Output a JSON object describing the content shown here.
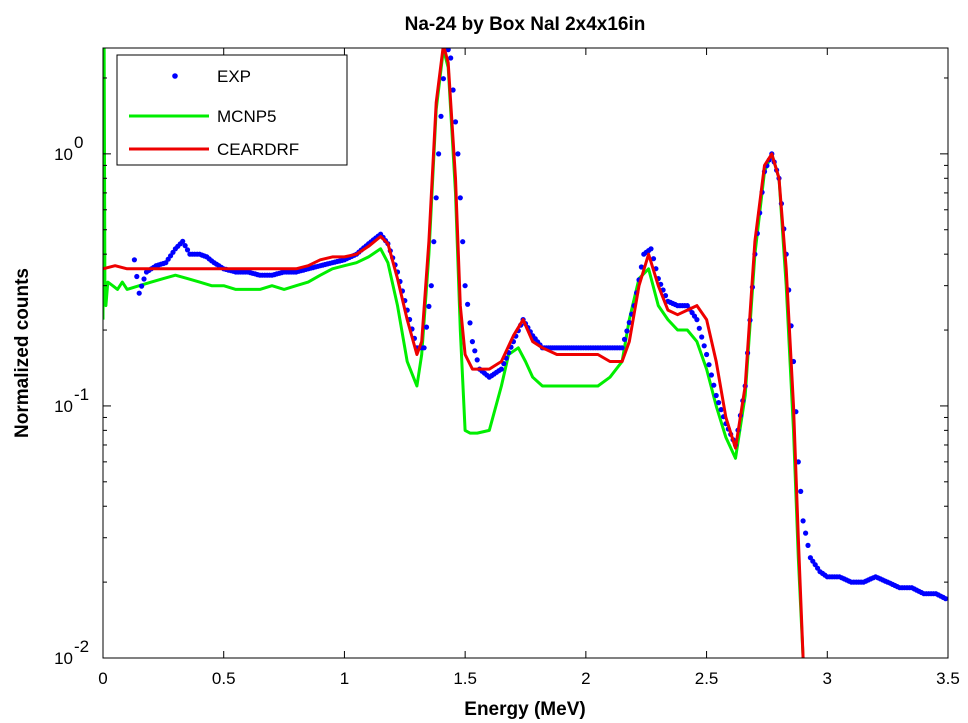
{
  "chart_data": {
    "type": "line",
    "title": "Na-24 by Box NaI 2x4x16in",
    "xlabel": "Energy (MeV)",
    "ylabel": "Normalized counts",
    "xlim": [
      0,
      3.5
    ],
    "ylim": [
      0.01,
      4.0
    ],
    "yscale": "log",
    "grid": false,
    "legend_position": "top-left",
    "x_ticks": [
      "0",
      "0.5",
      "1",
      "1.5",
      "2",
      "2.5",
      "3",
      "3.5"
    ],
    "y_ticks": [
      {
        "base": "10",
        "exp": "-2"
      },
      {
        "base": "10",
        "exp": "-1"
      },
      {
        "base": "10",
        "exp": "0"
      }
    ],
    "series": [
      {
        "name": "EXP",
        "style": "dots",
        "color": "#0000ff",
        "x": [
          0.13,
          0.15,
          0.18,
          0.22,
          0.26,
          0.3,
          0.33,
          0.36,
          0.4,
          0.43,
          0.46,
          0.5,
          0.55,
          0.6,
          0.65,
          0.7,
          0.75,
          0.8,
          0.85,
          0.9,
          0.95,
          1.0,
          1.05,
          1.1,
          1.15,
          1.18,
          1.22,
          1.26,
          1.3,
          1.33,
          1.36,
          1.39,
          1.42,
          1.44,
          1.47,
          1.5,
          1.53,
          1.56,
          1.6,
          1.65,
          1.7,
          1.74,
          1.78,
          1.82,
          1.88,
          1.95,
          2.0,
          2.05,
          2.1,
          2.15,
          2.2,
          2.24,
          2.27,
          2.3,
          2.34,
          2.38,
          2.42,
          2.46,
          2.5,
          2.54,
          2.58,
          2.62,
          2.66,
          2.7,
          2.74,
          2.77,
          2.8,
          2.83,
          2.86,
          2.88,
          2.9,
          2.93,
          2.97,
          3.0,
          3.05,
          3.1,
          3.15,
          3.2,
          3.25,
          3.3,
          3.35,
          3.4,
          3.45,
          3.5
        ],
        "y": [
          0.38,
          0.28,
          0.34,
          0.36,
          0.37,
          0.42,
          0.45,
          0.4,
          0.4,
          0.39,
          0.37,
          0.35,
          0.34,
          0.34,
          0.33,
          0.33,
          0.34,
          0.34,
          0.35,
          0.36,
          0.37,
          0.38,
          0.4,
          0.44,
          0.48,
          0.44,
          0.34,
          0.24,
          0.17,
          0.17,
          0.3,
          1.0,
          2.8,
          2.4,
          1.0,
          0.3,
          0.18,
          0.14,
          0.13,
          0.14,
          0.18,
          0.22,
          0.19,
          0.17,
          0.17,
          0.17,
          0.17,
          0.17,
          0.17,
          0.17,
          0.25,
          0.4,
          0.42,
          0.32,
          0.26,
          0.25,
          0.25,
          0.22,
          0.16,
          0.11,
          0.085,
          0.07,
          0.12,
          0.4,
          0.85,
          1.0,
          0.8,
          0.4,
          0.15,
          0.06,
          0.035,
          0.025,
          0.022,
          0.021,
          0.021,
          0.02,
          0.02,
          0.021,
          0.02,
          0.019,
          0.019,
          0.018,
          0.018,
          0.017
        ]
      },
      {
        "name": "MCNP5",
        "style": "line",
        "color": "#00ee00",
        "x": [
          0.0,
          0.004,
          0.008,
          0.012,
          0.02,
          0.04,
          0.06,
          0.08,
          0.1,
          0.15,
          0.2,
          0.25,
          0.3,
          0.35,
          0.4,
          0.45,
          0.5,
          0.55,
          0.6,
          0.65,
          0.7,
          0.75,
          0.8,
          0.85,
          0.9,
          0.95,
          1.0,
          1.05,
          1.1,
          1.15,
          1.18,
          1.22,
          1.26,
          1.3,
          1.32,
          1.35,
          1.38,
          1.41,
          1.43,
          1.46,
          1.48,
          1.5,
          1.52,
          1.55,
          1.6,
          1.65,
          1.68,
          1.72,
          1.75,
          1.78,
          1.82,
          1.88,
          1.95,
          2.05,
          2.1,
          2.15,
          2.18,
          2.22,
          2.26,
          2.3,
          2.34,
          2.38,
          2.42,
          2.46,
          2.5,
          2.54,
          2.58,
          2.62,
          2.66,
          2.7,
          2.74,
          2.77,
          2.8,
          2.83,
          2.86,
          2.88,
          2.9
        ],
        "y": [
          0.22,
          4.0,
          0.3,
          0.25,
          0.31,
          0.3,
          0.29,
          0.31,
          0.29,
          0.3,
          0.31,
          0.32,
          0.33,
          0.32,
          0.31,
          0.3,
          0.3,
          0.29,
          0.29,
          0.29,
          0.3,
          0.29,
          0.3,
          0.31,
          0.33,
          0.35,
          0.36,
          0.37,
          0.39,
          0.42,
          0.37,
          0.25,
          0.15,
          0.12,
          0.16,
          0.4,
          1.5,
          2.6,
          2.2,
          0.7,
          0.2,
          0.08,
          0.078,
          0.078,
          0.08,
          0.12,
          0.16,
          0.17,
          0.15,
          0.13,
          0.12,
          0.12,
          0.12,
          0.12,
          0.13,
          0.15,
          0.22,
          0.32,
          0.35,
          0.25,
          0.22,
          0.2,
          0.2,
          0.18,
          0.14,
          0.1,
          0.075,
          0.062,
          0.11,
          0.4,
          0.85,
          1.0,
          0.8,
          0.3,
          0.08,
          0.025,
          0.01
        ]
      },
      {
        "name": "CEARDRF",
        "style": "line",
        "color": "#ee0000",
        "x": [
          0.0,
          0.05,
          0.1,
          0.15,
          0.2,
          0.25,
          0.3,
          0.35,
          0.4,
          0.45,
          0.5,
          0.55,
          0.6,
          0.65,
          0.7,
          0.75,
          0.8,
          0.85,
          0.9,
          0.95,
          1.0,
          1.05,
          1.1,
          1.15,
          1.18,
          1.22,
          1.26,
          1.3,
          1.32,
          1.35,
          1.38,
          1.41,
          1.43,
          1.46,
          1.48,
          1.5,
          1.53,
          1.56,
          1.6,
          1.65,
          1.7,
          1.74,
          1.78,
          1.82,
          1.88,
          1.95,
          2.05,
          2.1,
          2.15,
          2.18,
          2.22,
          2.26,
          2.3,
          2.34,
          2.38,
          2.42,
          2.46,
          2.5,
          2.54,
          2.58,
          2.62,
          2.66,
          2.7,
          2.74,
          2.77,
          2.8,
          2.83,
          2.86,
          2.88,
          2.9
        ],
        "y": [
          0.35,
          0.36,
          0.35,
          0.35,
          0.35,
          0.35,
          0.35,
          0.35,
          0.35,
          0.35,
          0.35,
          0.35,
          0.35,
          0.35,
          0.35,
          0.35,
          0.35,
          0.36,
          0.38,
          0.39,
          0.39,
          0.4,
          0.43,
          0.47,
          0.44,
          0.32,
          0.22,
          0.16,
          0.18,
          0.45,
          1.6,
          2.7,
          2.3,
          0.8,
          0.25,
          0.16,
          0.14,
          0.14,
          0.14,
          0.15,
          0.19,
          0.22,
          0.18,
          0.17,
          0.16,
          0.16,
          0.16,
          0.15,
          0.15,
          0.18,
          0.3,
          0.4,
          0.3,
          0.24,
          0.23,
          0.24,
          0.25,
          0.22,
          0.15,
          0.09,
          0.068,
          0.12,
          0.45,
          0.9,
          1.0,
          0.8,
          0.35,
          0.1,
          0.03,
          0.01
        ]
      }
    ]
  }
}
